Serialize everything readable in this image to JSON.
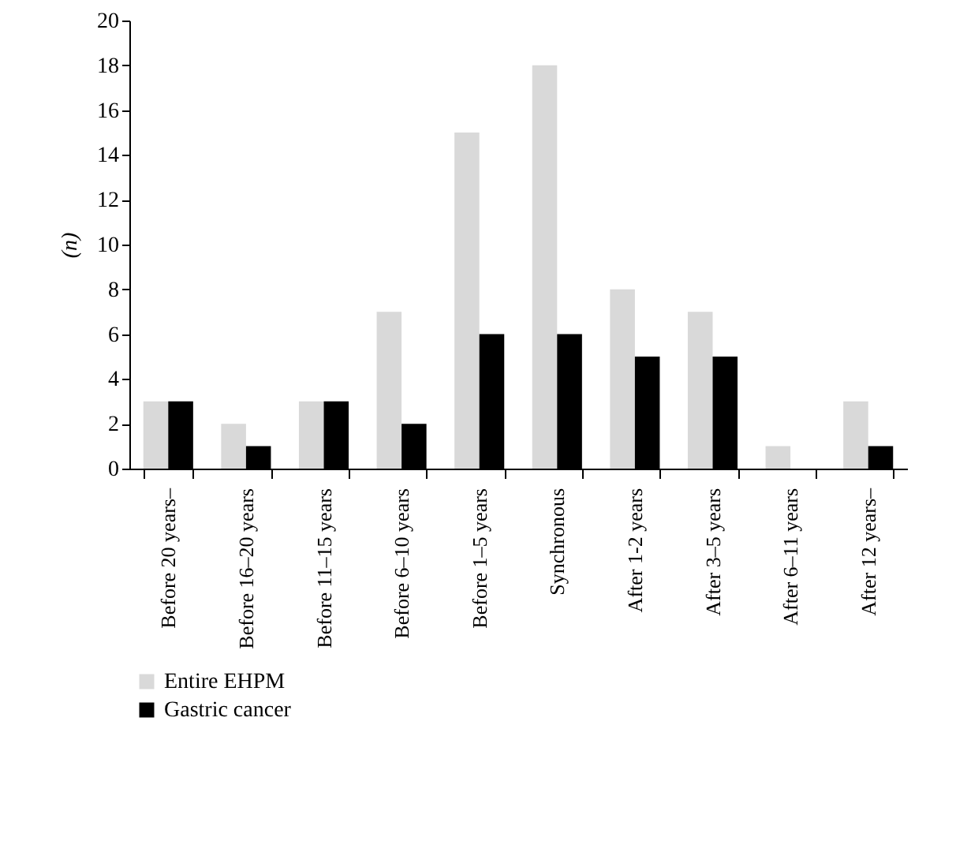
{
  "chart_data": {
    "type": "bar",
    "ylabel": "(n)",
    "categories": [
      "Before 20 years–",
      "Before 16–20 years",
      "Before 11–15 years",
      "Before 6–10 years",
      "Before 1–5 years",
      "Synchronous",
      "After 1-2 years",
      "After 3–5 years",
      "After 6–11 years",
      "After 12 years–"
    ],
    "series": [
      {
        "name": "Entire EHPM",
        "color": "#d9d9d9",
        "values": [
          3,
          2,
          3,
          7,
          15,
          18,
          8,
          7,
          1,
          3
        ]
      },
      {
        "name": "Gastric cancer",
        "color": "#000000",
        "values": [
          3,
          1,
          3,
          2,
          6,
          6,
          5,
          5,
          0,
          1
        ]
      }
    ],
    "ylim": [
      0,
      20
    ],
    "yticks": [
      0,
      2,
      4,
      6,
      8,
      10,
      12,
      14,
      16,
      18,
      20
    ],
    "grid": false,
    "legend": "bottom left"
  }
}
